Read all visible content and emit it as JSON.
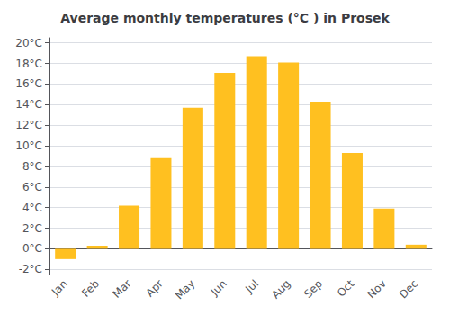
{
  "chart_data": {
    "type": "bar",
    "title": "Average monthly temperatures (°C ) in Prosek",
    "categories": [
      "Jan",
      "Feb",
      "Mar",
      "Apr",
      "May",
      "Jun",
      "Jul",
      "Aug",
      "Sep",
      "Oct",
      "Nov",
      "Dec"
    ],
    "values": [
      -1.0,
      0.3,
      4.2,
      8.8,
      13.7,
      17.1,
      18.7,
      18.1,
      14.3,
      9.3,
      3.9,
      0.4
    ],
    "color": "#FFC020",
    "ylim": [
      -2.5,
      20.5
    ],
    "yticks": [
      {
        "value": -2,
        "label": "-2°C"
      },
      {
        "value": 0,
        "label": "0°C"
      },
      {
        "value": 2,
        "label": "2°C"
      },
      {
        "value": 4,
        "label": "4°C"
      },
      {
        "value": 6,
        "label": "6°C"
      },
      {
        "value": 8,
        "label": "8°C"
      },
      {
        "value": 10,
        "label": "10°C"
      },
      {
        "value": 12,
        "label": "12°C"
      },
      {
        "value": 14,
        "label": "14°C"
      },
      {
        "value": 16,
        "label": "16°C"
      },
      {
        "value": 18,
        "label": "18°C"
      },
      {
        "value": 20,
        "label": "20°C"
      }
    ],
    "grid": true
  }
}
